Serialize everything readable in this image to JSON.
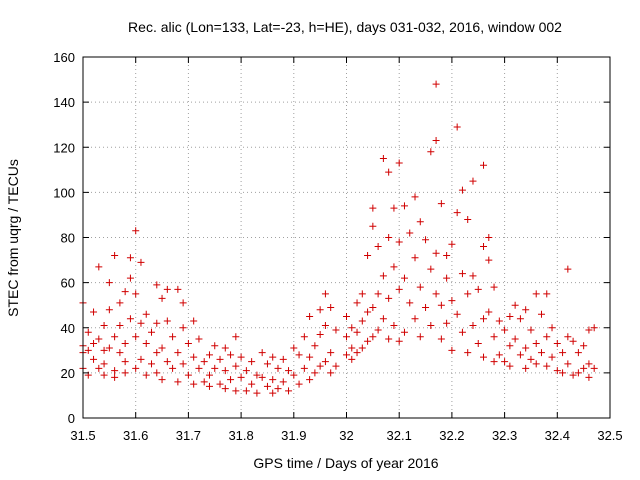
{
  "chart_data": {
    "type": "scatter",
    "title": "Rec. alic (Lon=133, Lat=-23, h=HE), days 031-032, 2016, window 002",
    "xlabel": "GPS time / Days of year 2016",
    "ylabel": "STEC from uqrg / TECUs",
    "xlim": [
      31.5,
      32.5
    ],
    "ylim": [
      0,
      160
    ],
    "xticks": [
      "31.5",
      "31.6",
      "31.7",
      "31.8",
      "31.9",
      "32",
      "32.1",
      "32.2",
      "32.3",
      "32.4",
      "32.5"
    ],
    "yticks": [
      "0",
      "20",
      "40",
      "60",
      "80",
      "100",
      "120",
      "140",
      "160"
    ],
    "grid": true,
    "marker": "plus",
    "color": "#d00000",
    "series": [
      {
        "name": "STEC",
        "points": [
          [
            31.5,
            51
          ],
          [
            31.5,
            32
          ],
          [
            31.5,
            29
          ],
          [
            31.5,
            22
          ],
          [
            31.51,
            38
          ],
          [
            31.51,
            30
          ],
          [
            31.51,
            19
          ],
          [
            31.52,
            47
          ],
          [
            31.52,
            33
          ],
          [
            31.52,
            26
          ],
          [
            31.53,
            67
          ],
          [
            31.53,
            35
          ],
          [
            31.53,
            22
          ],
          [
            31.54,
            41
          ],
          [
            31.54,
            30
          ],
          [
            31.54,
            24
          ],
          [
            31.54,
            19
          ],
          [
            31.55,
            60
          ],
          [
            31.55,
            48
          ],
          [
            31.55,
            31
          ],
          [
            31.56,
            72
          ],
          [
            31.56,
            36
          ],
          [
            31.56,
            21
          ],
          [
            31.56,
            18
          ],
          [
            31.57,
            51
          ],
          [
            31.57,
            41
          ],
          [
            31.57,
            29
          ],
          [
            31.58,
            56
          ],
          [
            31.58,
            33
          ],
          [
            31.58,
            25
          ],
          [
            31.58,
            20
          ],
          [
            31.59,
            71
          ],
          [
            31.59,
            62
          ],
          [
            31.59,
            44
          ],
          [
            31.6,
            83
          ],
          [
            31.6,
            55
          ],
          [
            31.6,
            36
          ],
          [
            31.6,
            22
          ],
          [
            31.61,
            69
          ],
          [
            31.61,
            42
          ],
          [
            31.61,
            26
          ],
          [
            31.62,
            46
          ],
          [
            31.62,
            33
          ],
          [
            31.62,
            19
          ],
          [
            31.63,
            38
          ],
          [
            31.63,
            24
          ],
          [
            31.64,
            59
          ],
          [
            31.64,
            42
          ],
          [
            31.64,
            29
          ],
          [
            31.64,
            20
          ],
          [
            31.65,
            53
          ],
          [
            31.65,
            31
          ],
          [
            31.65,
            17
          ],
          [
            31.66,
            57
          ],
          [
            31.66,
            43
          ],
          [
            31.66,
            25
          ],
          [
            31.67,
            36
          ],
          [
            31.67,
            22
          ],
          [
            31.68,
            57
          ],
          [
            31.68,
            29
          ],
          [
            31.68,
            16
          ],
          [
            31.69,
            51
          ],
          [
            31.69,
            40
          ],
          [
            31.69,
            24
          ],
          [
            31.7,
            33
          ],
          [
            31.7,
            19
          ],
          [
            31.71,
            43
          ],
          [
            31.71,
            27
          ],
          [
            31.71,
            15
          ],
          [
            31.72,
            35
          ],
          [
            31.72,
            22
          ],
          [
            31.73,
            25
          ],
          [
            31.73,
            16
          ],
          [
            31.74,
            28
          ],
          [
            31.74,
            19
          ],
          [
            31.74,
            14
          ],
          [
            31.75,
            32
          ],
          [
            31.75,
            22
          ],
          [
            31.76,
            26
          ],
          [
            31.76,
            15
          ],
          [
            31.77,
            31
          ],
          [
            31.77,
            21
          ],
          [
            31.77,
            13
          ],
          [
            31.78,
            28
          ],
          [
            31.78,
            17
          ],
          [
            31.79,
            36
          ],
          [
            31.79,
            23
          ],
          [
            31.79,
            12
          ],
          [
            31.8,
            27
          ],
          [
            31.8,
            18
          ],
          [
            31.81,
            21
          ],
          [
            31.81,
            12
          ],
          [
            31.82,
            25
          ],
          [
            31.82,
            15
          ],
          [
            31.83,
            19
          ],
          [
            31.83,
            11
          ],
          [
            31.84,
            29
          ],
          [
            31.84,
            18
          ],
          [
            31.85,
            24
          ],
          [
            31.85,
            14
          ],
          [
            31.86,
            27
          ],
          [
            31.86,
            17
          ],
          [
            31.86,
            11
          ],
          [
            31.87,
            22
          ],
          [
            31.87,
            13
          ],
          [
            31.88,
            26
          ],
          [
            31.88,
            16
          ],
          [
            31.89,
            21
          ],
          [
            31.89,
            12
          ],
          [
            31.9,
            31
          ],
          [
            31.9,
            19
          ],
          [
            31.91,
            28
          ],
          [
            31.91,
            15
          ],
          [
            31.92,
            36
          ],
          [
            31.92,
            22
          ],
          [
            31.93,
            45
          ],
          [
            31.93,
            27
          ],
          [
            31.93,
            17
          ],
          [
            31.94,
            32
          ],
          [
            31.94,
            20
          ],
          [
            31.95,
            48
          ],
          [
            31.95,
            37
          ],
          [
            31.95,
            23
          ],
          [
            31.96,
            55
          ],
          [
            31.96,
            41
          ],
          [
            31.96,
            25
          ],
          [
            31.97,
            49
          ],
          [
            31.97,
            29
          ],
          [
            31.97,
            20
          ],
          [
            31.98,
            39
          ],
          [
            31.98,
            23
          ],
          [
            32.0,
            45
          ],
          [
            32.0,
            36
          ],
          [
            32.0,
            28
          ],
          [
            32.01,
            40
          ],
          [
            32.01,
            31
          ],
          [
            32.01,
            26
          ],
          [
            32.02,
            51
          ],
          [
            32.02,
            38
          ],
          [
            32.02,
            29
          ],
          [
            32.03,
            55
          ],
          [
            32.03,
            43
          ],
          [
            32.03,
            31
          ],
          [
            32.04,
            72
          ],
          [
            32.04,
            47
          ],
          [
            32.04,
            34
          ],
          [
            32.05,
            93
          ],
          [
            32.05,
            85
          ],
          [
            32.05,
            49
          ],
          [
            32.05,
            36
          ],
          [
            32.06,
            76
          ],
          [
            32.06,
            55
          ],
          [
            32.06,
            39
          ],
          [
            32.07,
            115
          ],
          [
            32.07,
            63
          ],
          [
            32.07,
            44
          ],
          [
            32.08,
            109
          ],
          [
            32.08,
            80
          ],
          [
            32.08,
            53
          ],
          [
            32.08,
            35
          ],
          [
            32.09,
            93
          ],
          [
            32.09,
            67
          ],
          [
            32.09,
            41
          ],
          [
            32.1,
            113
          ],
          [
            32.1,
            78
          ],
          [
            32.1,
            57
          ],
          [
            32.1,
            34
          ],
          [
            32.11,
            94
          ],
          [
            32.11,
            62
          ],
          [
            32.11,
            38
          ],
          [
            32.12,
            82
          ],
          [
            32.12,
            51
          ],
          [
            32.13,
            98
          ],
          [
            32.13,
            71
          ],
          [
            32.13,
            44
          ],
          [
            32.14,
            87
          ],
          [
            32.14,
            58
          ],
          [
            32.14,
            36
          ],
          [
            32.15,
            79
          ],
          [
            32.15,
            49
          ],
          [
            32.16,
            118
          ],
          [
            32.16,
            66
          ],
          [
            32.16,
            41
          ],
          [
            32.17,
            148
          ],
          [
            32.17,
            123
          ],
          [
            32.17,
            73
          ],
          [
            32.17,
            55
          ],
          [
            32.18,
            95
          ],
          [
            32.18,
            50
          ],
          [
            32.18,
            35
          ],
          [
            32.19,
            72
          ],
          [
            32.19,
            62
          ],
          [
            32.19,
            42
          ],
          [
            32.2,
            77
          ],
          [
            32.2,
            52
          ],
          [
            32.2,
            30
          ],
          [
            32.21,
            129
          ],
          [
            32.21,
            91
          ],
          [
            32.21,
            46
          ],
          [
            32.22,
            101
          ],
          [
            32.22,
            64
          ],
          [
            32.22,
            38
          ],
          [
            32.23,
            88
          ],
          [
            32.23,
            55
          ],
          [
            32.23,
            29
          ],
          [
            32.24,
            105
          ],
          [
            32.24,
            63
          ],
          [
            32.24,
            41
          ],
          [
            32.25,
            57
          ],
          [
            32.25,
            33
          ],
          [
            32.26,
            112
          ],
          [
            32.26,
            76
          ],
          [
            32.26,
            44
          ],
          [
            32.26,
            27
          ],
          [
            32.27,
            80
          ],
          [
            32.27,
            70
          ],
          [
            32.27,
            47
          ],
          [
            32.28,
            58
          ],
          [
            32.28,
            36
          ],
          [
            32.28,
            25
          ],
          [
            32.29,
            43
          ],
          [
            32.29,
            28
          ],
          [
            32.3,
            39
          ],
          [
            32.3,
            25
          ],
          [
            32.31,
            45
          ],
          [
            32.31,
            32
          ],
          [
            32.31,
            23
          ],
          [
            32.32,
            50
          ],
          [
            32.32,
            35
          ],
          [
            32.33,
            44
          ],
          [
            32.33,
            28
          ],
          [
            32.34,
            48
          ],
          [
            32.34,
            31
          ],
          [
            32.34,
            22
          ],
          [
            32.35,
            39
          ],
          [
            32.35,
            26
          ],
          [
            32.36,
            55
          ],
          [
            32.36,
            33
          ],
          [
            32.36,
            24
          ],
          [
            32.37,
            46
          ],
          [
            32.37,
            29
          ],
          [
            32.38,
            55
          ],
          [
            32.38,
            36
          ],
          [
            32.38,
            23
          ],
          [
            32.39,
            40
          ],
          [
            32.39,
            27
          ],
          [
            32.4,
            33
          ],
          [
            32.4,
            21
          ],
          [
            32.41,
            29
          ],
          [
            32.41,
            20
          ],
          [
            32.42,
            66
          ],
          [
            32.42,
            36
          ],
          [
            32.42,
            24
          ],
          [
            32.43,
            34
          ],
          [
            32.43,
            19
          ],
          [
            32.44,
            29
          ],
          [
            32.44,
            20
          ],
          [
            32.45,
            32
          ],
          [
            32.45,
            22
          ],
          [
            32.46,
            39
          ],
          [
            32.46,
            24
          ],
          [
            32.46,
            18
          ],
          [
            32.47,
            40
          ],
          [
            32.47,
            22
          ]
        ]
      }
    ]
  }
}
